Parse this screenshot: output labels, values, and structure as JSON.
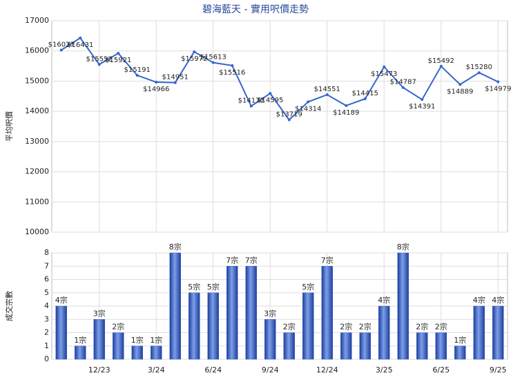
{
  "chart_data": [
    {
      "type": "line",
      "title": "碧海藍天 - 實用呎價走勢",
      "y_label": "平均呎價",
      "color": "#3366cc",
      "values": [
        16027,
        16431,
        15552,
        15921,
        15191,
        14966,
        14951,
        15972,
        15613,
        15516,
        14172,
        14595,
        13719,
        14314,
        14551,
        14189,
        14415,
        15473,
        14787,
        14391,
        15492,
        14889,
        15280,
        14979
      ],
      "value_labels": [
        "$16027",
        "$16431",
        "$15552",
        "$15921",
        "$15191",
        "$14966",
        "$14951",
        "$15972",
        "$15613",
        "$15516",
        "$14172",
        "$14595",
        "$13719",
        "$14314",
        "$14551",
        "$14189",
        "$14415",
        "$15473",
        "$14787",
        "$14391",
        "$15492",
        "$14889",
        "$15280",
        "$14979"
      ],
      "ylim": [
        10000,
        17000
      ],
      "yticks": [
        10000,
        11000,
        12000,
        13000,
        14000,
        15000,
        16000,
        17000
      ],
      "grid": true
    },
    {
      "type": "bar",
      "y_label": "成交宗數",
      "color": "#3a62c8",
      "categories": [
        null,
        null,
        "12/23",
        null,
        null,
        "3/24",
        null,
        null,
        "6/24",
        null,
        null,
        "9/24",
        null,
        null,
        "12/24",
        null,
        null,
        "3/25",
        null,
        null,
        "6/25",
        null,
        null,
        "9/25"
      ],
      "values": [
        4,
        1,
        3,
        2,
        1,
        1,
        8,
        5,
        5,
        7,
        7,
        3,
        2,
        5,
        7,
        2,
        2,
        4,
        8,
        2,
        2,
        1,
        4,
        4
      ],
      "value_labels": [
        "4宗",
        "1宗",
        "3宗",
        "2宗",
        "1宗",
        "1宗",
        "8宗",
        "5宗",
        "5宗",
        "7宗",
        "7宗",
        "3宗",
        "2宗",
        "5宗",
        "7宗",
        "2宗",
        "2宗",
        "4宗",
        "8宗",
        "2宗",
        "2宗",
        "1宗",
        "4宗",
        "4宗"
      ],
      "ylim": [
        0,
        8
      ],
      "yticks": [
        0,
        1,
        2,
        3,
        4,
        5,
        6,
        7,
        8
      ],
      "grid": true
    }
  ]
}
